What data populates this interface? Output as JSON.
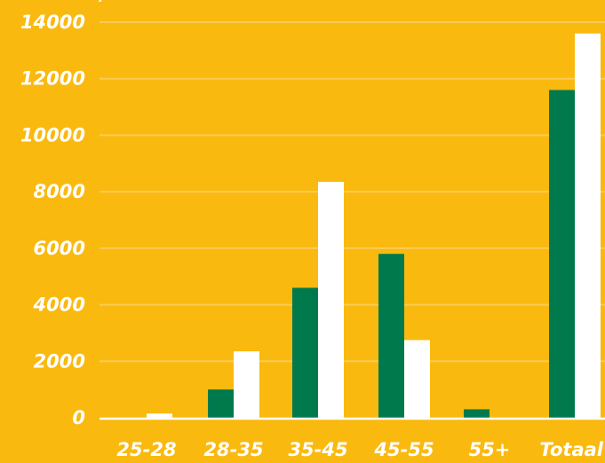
{
  "colors": {
    "background": "#f9b90f",
    "series_a": "#007a4d",
    "series_b": "#ffffff",
    "gridline": "#fbcb55",
    "text": "#ffffff"
  },
  "chart_data": {
    "type": "bar",
    "title": "",
    "xlabel": "",
    "ylabel": "",
    "ylim": [
      0,
      14000
    ],
    "yticks": [
      0,
      2000,
      4000,
      6000,
      8000,
      10000,
      12000,
      14000
    ],
    "grid": true,
    "legend": "none",
    "categories": [
      "25-28",
      "28-35",
      "35-45",
      "45-55",
      "55+",
      "Totaal"
    ],
    "series": [
      {
        "values": [
          0,
          1000,
          4600,
          5800,
          300,
          11600
        ]
      },
      {
        "values": [
          150,
          2350,
          8350,
          2750,
          0,
          13600
        ]
      }
    ]
  }
}
